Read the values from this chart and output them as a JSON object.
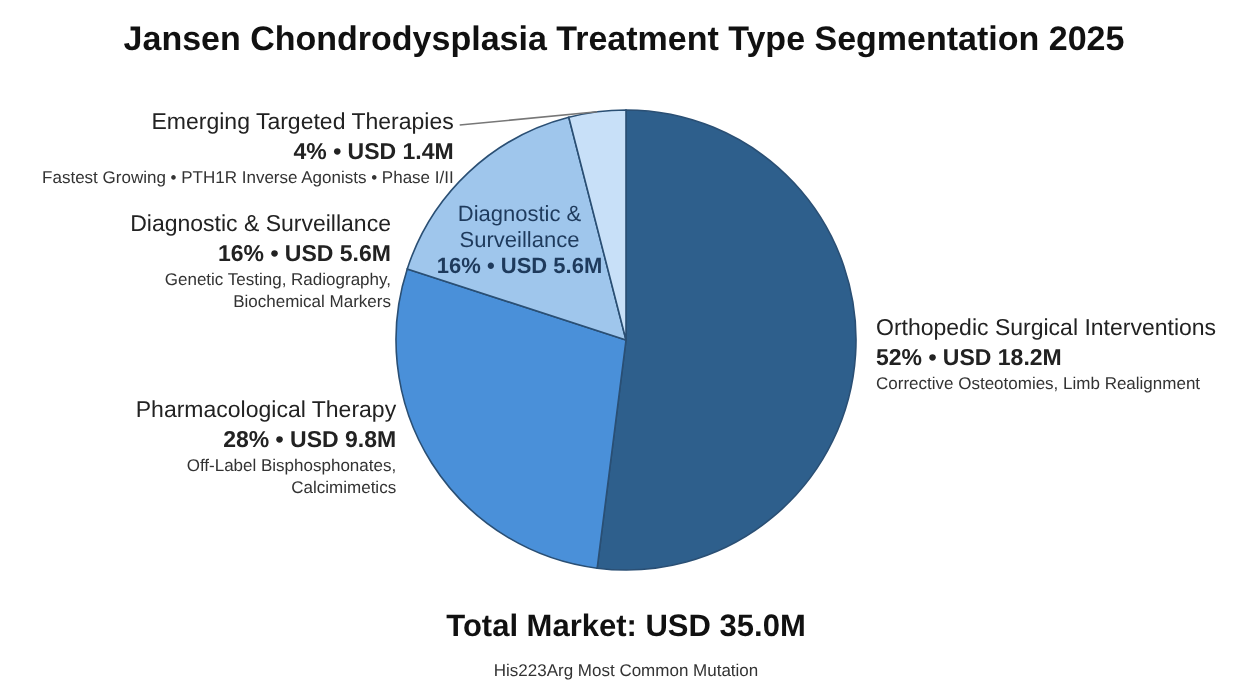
{
  "chart_data": {
    "type": "pie",
    "title": "Jansen Chondrodysplasia Treatment Type Segmentation 2025",
    "subtitle": "Total Market: USD 35.0M",
    "categories": [
      "Orthopedic Surgical Interventions",
      "Pharmacological Therapy",
      "Diagnostic & Surveillance",
      "Emerging Targeted Therapies"
    ],
    "values": [
      52,
      28,
      16,
      4
    ],
    "colors": [
      "#2e5f8c",
      "#4a90d9",
      "#9fc6ec",
      "#c8e0f8"
    ],
    "value_labels": [
      "52% • USD 18.2M",
      "28% • USD 9.8M",
      "16% • USD 5.6M",
      "4% • USD 1.4M"
    ],
    "annotations": [
      {
        "text": "Corrective Osteotomies, Limb Realignment",
        "x": "Orthopedic Surgical Interventions"
      },
      {
        "text": "Off-Label Bisphosphonates,\nCalcimimetics",
        "x": "Pharmacological Therapy"
      },
      {
        "text": "Genetic Testing, Radiography,\nBiochemical Markers",
        "x": "Diagnostic & Surveillance"
      },
      {
        "text": "Diagnostic &\nSurveillance\n16% • USD 5.6M",
        "x": "Diagnostic & Surveillance"
      },
      {
        "text": "Fastest Growing • PTH1R Inverse Agonists • Phase I/II",
        "x": "Emerging Targeted Therapies"
      },
      "His223Arg Most Common Mutation"
    ]
  }
}
